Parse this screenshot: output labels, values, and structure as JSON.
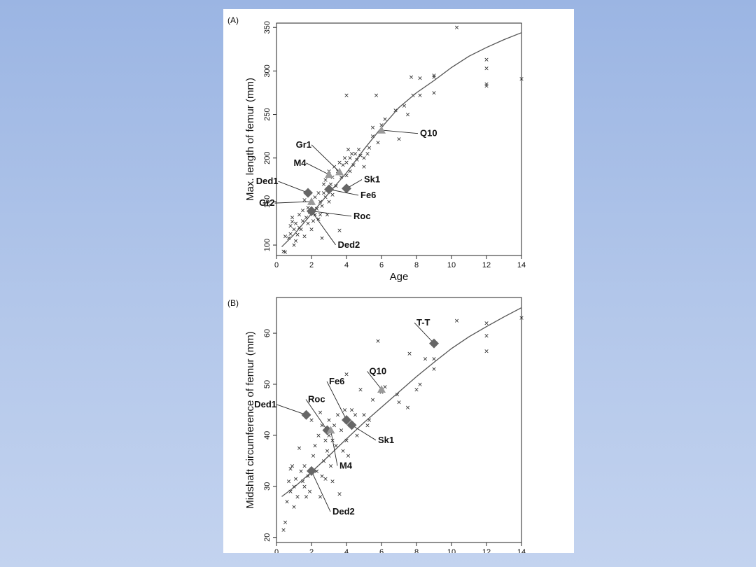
{
  "chart_data": [
    {
      "panel_label": "(A)",
      "type": "scatter",
      "xlabel": "Age",
      "ylabel": "Max. length of femur (mm)",
      "xlim": [
        0,
        14
      ],
      "ylim": [
        88,
        355
      ],
      "xticks": [
        0,
        2,
        4,
        6,
        8,
        10,
        12,
        14
      ],
      "yticks": [
        100,
        150,
        200,
        250,
        300,
        350
      ],
      "marker": "×",
      "points": [
        [
          0.4,
          93
        ],
        [
          0.5,
          92
        ],
        [
          0.5,
          110
        ],
        [
          0.7,
          108
        ],
        [
          0.8,
          113
        ],
        [
          0.8,
          122
        ],
        [
          0.9,
          127
        ],
        [
          0.9,
          132
        ],
        [
          1.0,
          100
        ],
        [
          1.0,
          118
        ],
        [
          1.1,
          105
        ],
        [
          1.1,
          125
        ],
        [
          1.2,
          112
        ],
        [
          1.3,
          120
        ],
        [
          1.3,
          135
        ],
        [
          1.4,
          118
        ],
        [
          1.5,
          128
        ],
        [
          1.5,
          140
        ],
        [
          1.6,
          110
        ],
        [
          1.6,
          152
        ],
        [
          1.7,
          132
        ],
        [
          1.8,
          125
        ],
        [
          1.8,
          143
        ],
        [
          1.9,
          138
        ],
        [
          2.0,
          118
        ],
        [
          2.0,
          148
        ],
        [
          2.1,
          128
        ],
        [
          2.2,
          135
        ],
        [
          2.2,
          155
        ],
        [
          2.3,
          142
        ],
        [
          2.4,
          130
        ],
        [
          2.4,
          160
        ],
        [
          2.5,
          135
        ],
        [
          2.5,
          150
        ],
        [
          2.6,
          108
        ],
        [
          2.6,
          145
        ],
        [
          2.7,
          160
        ],
        [
          2.7,
          170
        ],
        [
          2.8,
          155
        ],
        [
          2.8,
          175
        ],
        [
          2.9,
          135
        ],
        [
          3.0,
          150
        ],
        [
          3.0,
          165
        ],
        [
          3.0,
          185
        ],
        [
          3.1,
          170
        ],
        [
          3.2,
          158
        ],
        [
          3.2,
          178
        ],
        [
          3.3,
          190
        ],
        [
          3.4,
          168
        ],
        [
          3.5,
          185
        ],
        [
          3.6,
          195
        ],
        [
          3.6,
          117
        ],
        [
          3.7,
          178
        ],
        [
          3.8,
          192
        ],
        [
          3.9,
          200
        ],
        [
          4.0,
          180
        ],
        [
          4.0,
          195
        ],
        [
          4.0,
          272
        ],
        [
          4.1,
          210
        ],
        [
          4.2,
          185
        ],
        [
          4.2,
          200
        ],
        [
          4.3,
          205
        ],
        [
          4.4,
          192
        ],
        [
          4.5,
          205
        ],
        [
          4.6,
          198
        ],
        [
          4.7,
          210
        ],
        [
          4.8,
          203
        ],
        [
          5.0,
          190
        ],
        [
          5.0,
          200
        ],
        [
          5.2,
          205
        ],
        [
          5.3,
          212
        ],
        [
          5.5,
          225
        ],
        [
          5.5,
          235
        ],
        [
          5.7,
          272
        ],
        [
          5.8,
          218
        ],
        [
          6.0,
          238
        ],
        [
          6.2,
          245
        ],
        [
          6.8,
          255
        ],
        [
          7.0,
          222
        ],
        [
          7.3,
          260
        ],
        [
          7.5,
          250
        ],
        [
          7.7,
          293
        ],
        [
          7.8,
          272
        ],
        [
          8.2,
          292
        ],
        [
          8.2,
          272
        ],
        [
          9.0,
          295
        ],
        [
          9.0,
          293
        ],
        [
          9.0,
          275
        ],
        [
          10.3,
          350
        ],
        [
          12.0,
          313
        ],
        [
          12.0,
          303
        ],
        [
          12.0,
          285
        ],
        [
          12.0,
          283
        ],
        [
          14.0,
          291
        ]
      ],
      "fit_curve": [
        [
          0.3,
          98
        ],
        [
          1,
          112
        ],
        [
          2,
          136
        ],
        [
          3,
          160
        ],
        [
          4,
          183
        ],
        [
          5,
          210
        ],
        [
          6,
          235
        ],
        [
          7,
          258
        ],
        [
          8,
          275
        ],
        [
          9,
          289
        ],
        [
          10,
          304
        ],
        [
          11,
          317
        ],
        [
          12,
          327
        ],
        [
          13,
          336
        ],
        [
          14,
          344
        ]
      ],
      "specimens": [
        {
          "label": "Gr1",
          "x": 3.6,
          "y": 184,
          "marker": "triangle",
          "color": "#9a9a9a",
          "label_x": 2.0,
          "label_y": 212,
          "label_pos": "left"
        },
        {
          "label": "M4",
          "x": 3.0,
          "y": 181,
          "marker": "triangle",
          "color": "#9a9a9a",
          "label_x": 1.7,
          "label_y": 191,
          "label_pos": "left"
        },
        {
          "label": "Ded1",
          "x": 1.8,
          "y": 160,
          "marker": "diamond",
          "color": "#666666",
          "label_x": 0.1,
          "label_y": 170,
          "label_pos": "left"
        },
        {
          "label": "Gr2",
          "x": 2.0,
          "y": 150,
          "marker": "triangle",
          "color": "#9a9a9a",
          "label_x": -0.1,
          "label_y": 145,
          "label_pos": "left"
        },
        {
          "label": "Sk1",
          "x": 4.0,
          "y": 165,
          "marker": "diamond",
          "color": "#666666",
          "label_x": 5.0,
          "label_y": 172,
          "label_pos": "right"
        },
        {
          "label": "Fe6",
          "x": 3.0,
          "y": 164,
          "marker": "diamond",
          "color": "#666666",
          "label_x": 4.8,
          "label_y": 154,
          "label_pos": "right"
        },
        {
          "label": "Roc",
          "x": 2.0,
          "y": 139,
          "marker": "diamond",
          "color": "#666666",
          "label_x": 4.4,
          "label_y": 130,
          "label_pos": "right"
        },
        {
          "label": "Ded2",
          "x": 2.0,
          "y": 139,
          "marker": "diamond",
          "color": "#666666",
          "label_x": 3.5,
          "label_y": 97,
          "label_pos": "right"
        },
        {
          "label": "Q10",
          "x": 6.0,
          "y": 232,
          "marker": "triangle",
          "color": "#9a9a9a",
          "label_x": 8.2,
          "label_y": 225,
          "label_pos": "right"
        }
      ]
    },
    {
      "panel_label": "(B)",
      "type": "scatter",
      "xlabel": "",
      "ylabel": "Midshaft circumference of femur (mm)",
      "xlim": [
        0,
        14
      ],
      "ylim": [
        19,
        67
      ],
      "xticks": [
        0,
        2,
        4,
        6,
        8,
        10,
        12,
        14
      ],
      "yticks": [
        20,
        30,
        40,
        50,
        60
      ],
      "marker": "×",
      "points": [
        [
          0.4,
          21.5
        ],
        [
          0.5,
          23
        ],
        [
          0.6,
          27
        ],
        [
          0.7,
          31
        ],
        [
          0.8,
          33.5
        ],
        [
          0.8,
          29
        ],
        [
          0.9,
          34
        ],
        [
          1.0,
          30
        ],
        [
          1.0,
          26
        ],
        [
          1.1,
          31.5
        ],
        [
          1.2,
          28
        ],
        [
          1.3,
          37.5
        ],
        [
          1.4,
          33
        ],
        [
          1.5,
          31
        ],
        [
          1.6,
          30
        ],
        [
          1.6,
          34
        ],
        [
          1.7,
          28
        ],
        [
          1.8,
          32
        ],
        [
          1.9,
          29
        ],
        [
          2.0,
          43
        ],
        [
          2.1,
          36
        ],
        [
          2.2,
          38
        ],
        [
          2.3,
          33
        ],
        [
          2.4,
          40
        ],
        [
          2.5,
          44.5
        ],
        [
          2.5,
          28
        ],
        [
          2.6,
          32
        ],
        [
          2.6,
          42
        ],
        [
          2.7,
          35
        ],
        [
          2.8,
          39
        ],
        [
          2.8,
          31.5
        ],
        [
          2.9,
          37
        ],
        [
          3.0,
          40
        ],
        [
          3.0,
          36
        ],
        [
          3.0,
          43
        ],
        [
          3.1,
          34
        ],
        [
          3.2,
          31
        ],
        [
          3.2,
          39
        ],
        [
          3.3,
          42
        ],
        [
          3.4,
          38
        ],
        [
          3.5,
          44
        ],
        [
          3.6,
          28.5
        ],
        [
          3.7,
          41
        ],
        [
          3.8,
          37
        ],
        [
          3.9,
          45
        ],
        [
          4.0,
          39
        ],
        [
          4.0,
          52
        ],
        [
          4.1,
          36
        ],
        [
          4.2,
          42
        ],
        [
          4.3,
          45
        ],
        [
          4.5,
          44
        ],
        [
          4.6,
          40
        ],
        [
          4.8,
          49
        ],
        [
          5.0,
          44
        ],
        [
          5.2,
          42
        ],
        [
          5.3,
          43
        ],
        [
          5.5,
          47
        ],
        [
          5.8,
          58.5
        ],
        [
          6.0,
          48.5
        ],
        [
          6.2,
          49.5
        ],
        [
          6.9,
          48
        ],
        [
          7.0,
          46.5
        ],
        [
          7.5,
          45.5
        ],
        [
          7.6,
          56
        ],
        [
          8.0,
          49
        ],
        [
          8.2,
          50
        ],
        [
          8.5,
          55
        ],
        [
          9.0,
          55
        ],
        [
          9.0,
          53
        ],
        [
          10.3,
          62.5
        ],
        [
          12.0,
          62
        ],
        [
          12.0,
          59.5
        ],
        [
          12.0,
          56.5
        ],
        [
          14.0,
          63
        ]
      ],
      "fit_curve": [
        [
          0.3,
          28
        ],
        [
          1,
          29.8
        ],
        [
          2,
          32.8
        ],
        [
          3,
          36
        ],
        [
          4,
          39.3
        ],
        [
          5,
          42.5
        ],
        [
          6,
          45.5
        ],
        [
          7,
          48.5
        ],
        [
          8,
          51.5
        ],
        [
          9,
          54.3
        ],
        [
          10,
          57
        ],
        [
          11,
          59.3
        ],
        [
          12,
          61.3
        ],
        [
          13,
          63.2
        ],
        [
          14,
          65
        ]
      ],
      "specimens": [
        {
          "label": "T-T",
          "x": 9.0,
          "y": 58,
          "marker": "diamond",
          "color": "#666666",
          "label_x": 8.0,
          "label_y": 61.5,
          "label_pos": "right"
        },
        {
          "label": "Q10",
          "x": 6.0,
          "y": 49,
          "marker": "triangle",
          "color": "#9a9a9a",
          "label_x": 5.3,
          "label_y": 52,
          "label_pos": "right"
        },
        {
          "label": "Fe6",
          "x": 4.0,
          "y": 43,
          "marker": "diamond",
          "color": "#666666",
          "label_x": 3.0,
          "label_y": 50,
          "label_pos": "right"
        },
        {
          "label": "Ded1",
          "x": 1.7,
          "y": 44,
          "marker": "diamond",
          "color": "#666666",
          "label_x": 0.0,
          "label_y": 45.5,
          "label_pos": "left"
        },
        {
          "label": "Roc",
          "x": 2.9,
          "y": 41,
          "marker": "diamond",
          "color": "#666666",
          "label_x": 1.8,
          "label_y": 46.5,
          "label_pos": "right"
        },
        {
          "label": "Sk1",
          "x": 4.3,
          "y": 42,
          "marker": "diamond",
          "color": "#666666",
          "label_x": 5.8,
          "label_y": 38.5,
          "label_pos": "right"
        },
        {
          "label": "M4",
          "x": 3.1,
          "y": 41,
          "marker": "triangle",
          "color": "#9a9a9a",
          "label_x": 3.6,
          "label_y": 33.5,
          "label_pos": "right"
        },
        {
          "label": "Ded2",
          "x": 2.0,
          "y": 33,
          "marker": "diamond",
          "color": "#666666",
          "label_x": 3.2,
          "label_y": 24.5,
          "label_pos": "right"
        }
      ]
    }
  ]
}
